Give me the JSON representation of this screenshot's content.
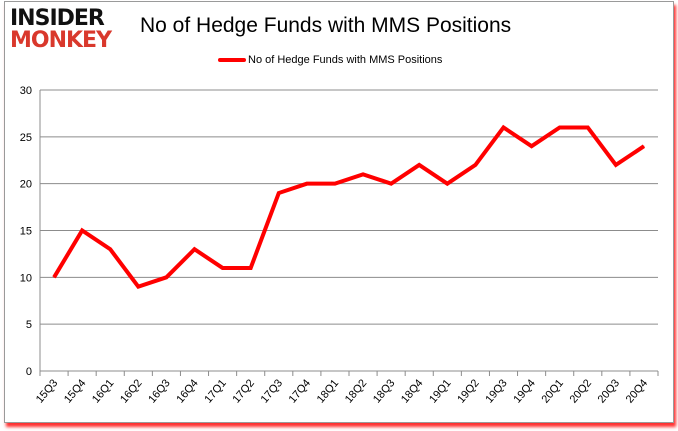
{
  "logo": {
    "line1": "INSIDER",
    "line2": "MONKEY"
  },
  "chart_data": {
    "type": "line",
    "title": "No of Hedge Funds with MMS Positions",
    "xlabel": "",
    "ylabel": "",
    "categories": [
      "15Q3",
      "15Q4",
      "16Q1",
      "16Q2",
      "16Q3",
      "16Q4",
      "17Q1",
      "17Q2",
      "17Q3",
      "17Q4",
      "18Q1",
      "18Q2",
      "18Q3",
      "18Q4",
      "19Q1",
      "19Q2",
      "19Q3",
      "19Q4",
      "20Q1",
      "20Q2",
      "20Q3",
      "20Q4"
    ],
    "series": [
      {
        "name": "No of Hedge Funds with MMS Positions",
        "color": "#ff0000",
        "values": [
          10,
          15,
          13,
          9,
          10,
          13,
          11,
          11,
          19,
          20,
          20,
          21,
          20,
          22,
          20,
          22,
          26,
          24,
          26,
          26,
          22,
          24
        ]
      }
    ],
    "ylim": [
      0,
      30
    ],
    "yticks": [
      0,
      5,
      10,
      15,
      20,
      25,
      30
    ],
    "grid": true,
    "legend": "top-center"
  }
}
